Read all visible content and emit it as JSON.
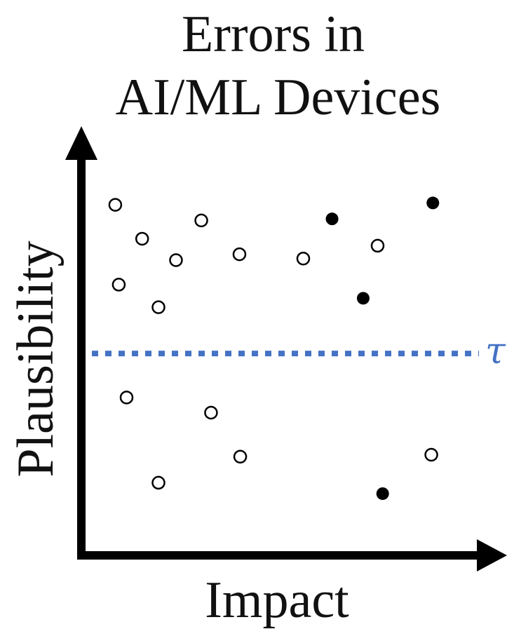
{
  "title_lines": [
    "Errors in",
    "AI/ML Devices"
  ],
  "xlabel": "Impact",
  "ylabel": "Plausibility",
  "threshold_label": "τ",
  "colors": {
    "axis": "#000000",
    "threshold": "#4472C4",
    "open_marker_stroke": "#000000",
    "filled_marker": "#000000"
  },
  "chart_data": {
    "type": "scatter",
    "title": "Errors in AI/ML Devices",
    "xlabel": "Impact",
    "ylabel": "Plausibility",
    "xlim": [
      0,
      100
    ],
    "ylim": [
      0,
      100
    ],
    "grid": false,
    "threshold": {
      "axis": "y",
      "value": 50.6,
      "label": "τ",
      "style": "dotted"
    },
    "series": [
      {
        "marker": "open-circle",
        "points": [
          {
            "x": 7.1,
            "y": 88.8
          },
          {
            "x": 14.0,
            "y": 80.1
          },
          {
            "x": 29.2,
            "y": 84.8
          },
          {
            "x": 22.7,
            "y": 74.6
          },
          {
            "x": 39.0,
            "y": 76.1
          },
          {
            "x": 55.4,
            "y": 75.0
          },
          {
            "x": 74.5,
            "y": 78.3
          },
          {
            "x": 8.0,
            "y": 68.3
          },
          {
            "x": 18.2,
            "y": 62.5
          },
          {
            "x": 10.0,
            "y": 39.3
          },
          {
            "x": 31.7,
            "y": 35.4
          },
          {
            "x": 39.2,
            "y": 24.1
          },
          {
            "x": 18.2,
            "y": 17.4
          },
          {
            "x": 88.3,
            "y": 24.6
          }
        ]
      },
      {
        "marker": "filled-circle",
        "points": [
          {
            "x": 62.8,
            "y": 85.2
          },
          {
            "x": 88.7,
            "y": 89.3
          },
          {
            "x": 70.8,
            "y": 64.8
          },
          {
            "x": 75.8,
            "y": 14.6
          }
        ]
      }
    ]
  }
}
